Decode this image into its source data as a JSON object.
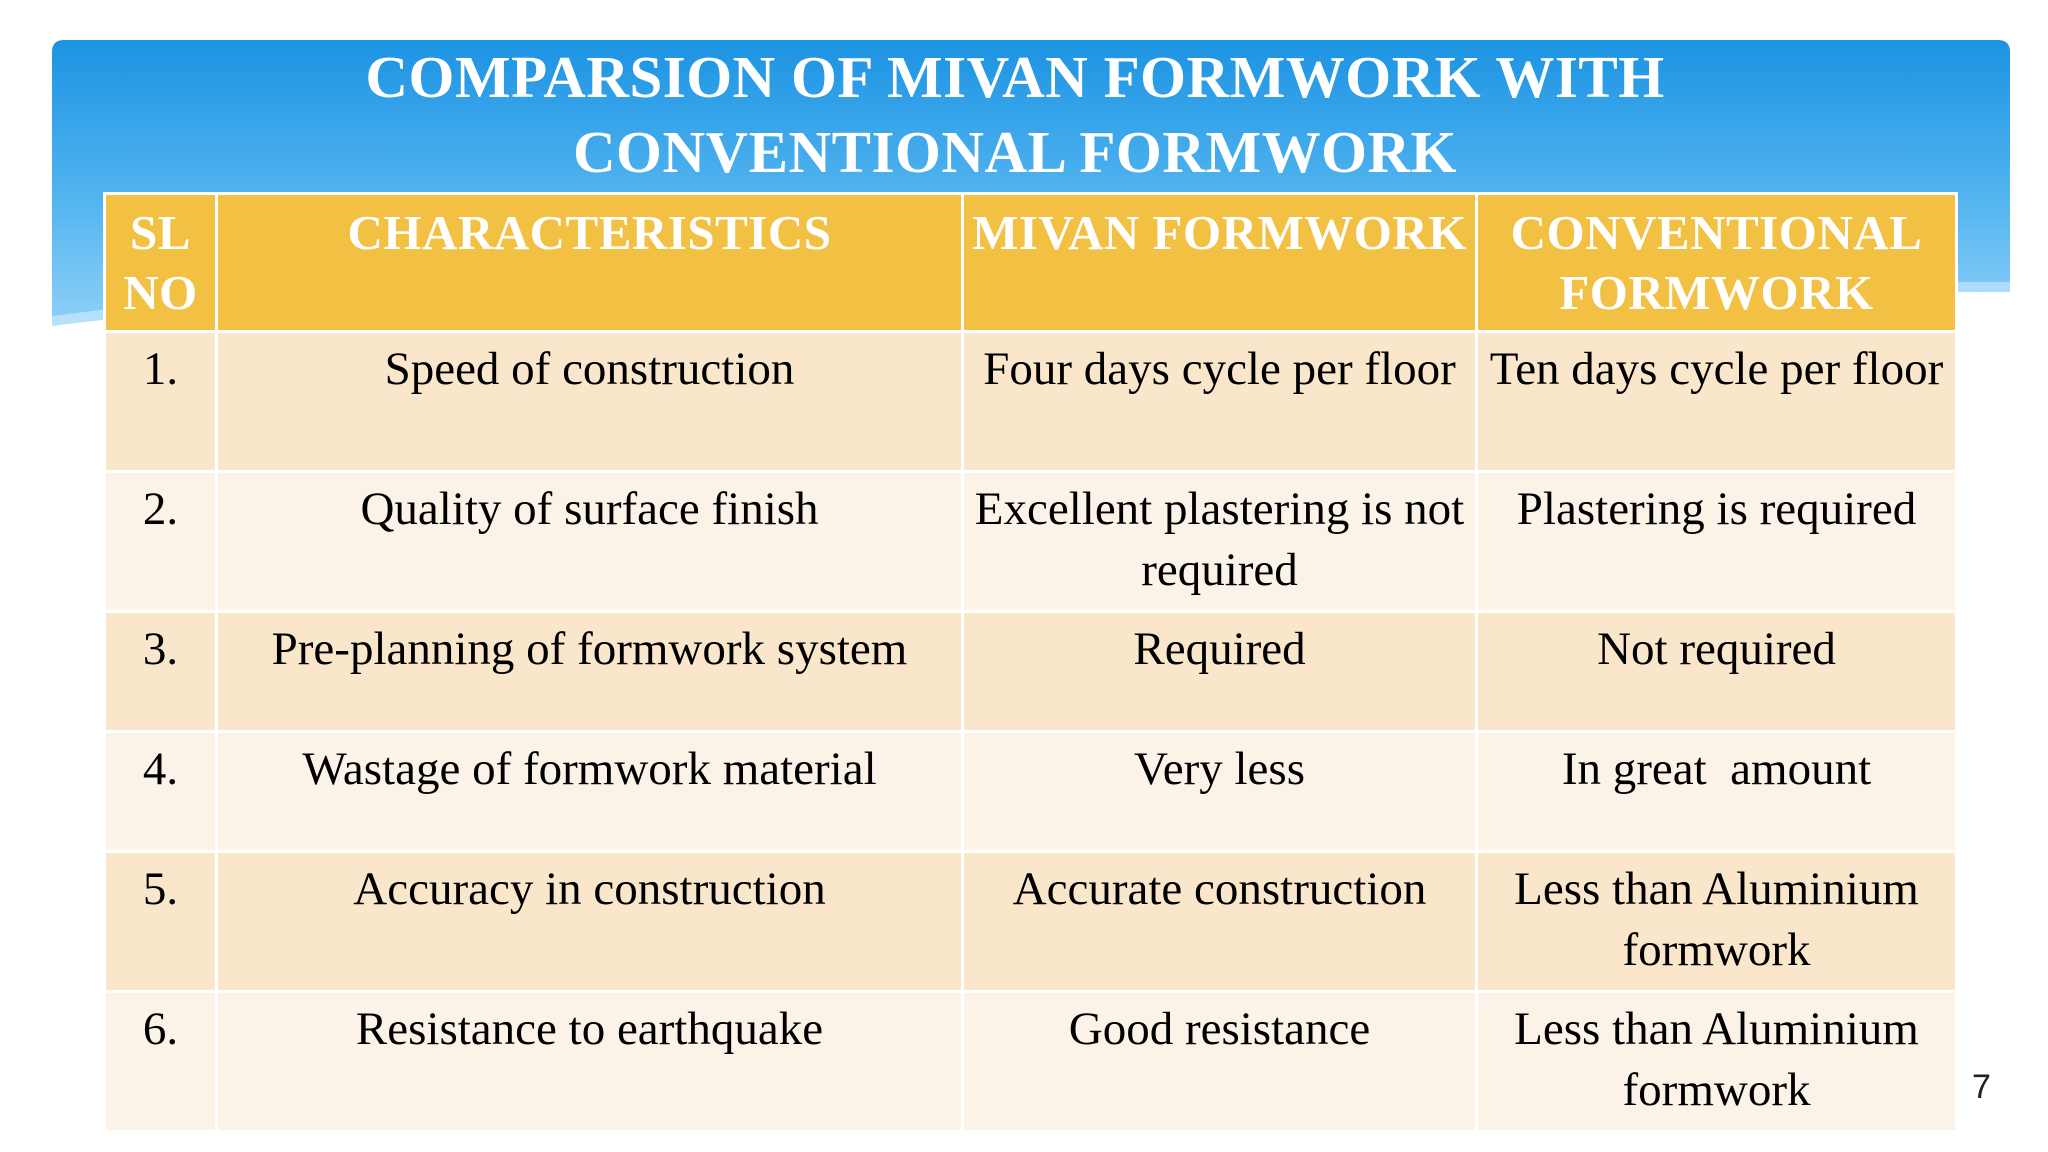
{
  "title": {
    "line1": "COMPARSION OF MIVAN FORMWORK WITH",
    "line2": "CONVENTIONAL FORMWORK"
  },
  "table": {
    "headers": {
      "sl_no": "SL NO",
      "characteristics": "CHARACTERISTICS",
      "mivan": "MIVAN FORMWORK",
      "conventional": "CONVENTIONAL FORMWORK"
    },
    "rows": [
      {
        "sl": "1.",
        "characteristic": "Speed of construction",
        "mivan": "Four days cycle per floor",
        "conventional": "Ten days cycle per floor"
      },
      {
        "sl": "2.",
        "characteristic": "Quality of surface finish",
        "mivan": "Excellent plastering is not required",
        "conventional": "Plastering is required"
      },
      {
        "sl": "3.",
        "characteristic": "Pre-planning of formwork system",
        "mivan": "Required",
        "conventional": "Not required"
      },
      {
        "sl": "4.",
        "characteristic": "Wastage of formwork material",
        "mivan": "Very less",
        "conventional": "In great  amount"
      },
      {
        "sl": "5.",
        "characteristic": "Accuracy in construction",
        "mivan": "Accurate construction",
        "conventional": "Less than Aluminium formwork"
      },
      {
        "sl": "6.",
        "characteristic": "Resistance to earthquake",
        "mivan": "Good resistance",
        "conventional": "Less than Aluminium formwork"
      }
    ]
  },
  "page_number": "7",
  "colors": {
    "banner_top": "#1c93e3",
    "banner_bottom": "#7cc8f5",
    "header_fill": "#f2c043",
    "row_odd": "#f9e6cb",
    "row_even": "#fcf3e8",
    "title_text": "#ffffff"
  }
}
